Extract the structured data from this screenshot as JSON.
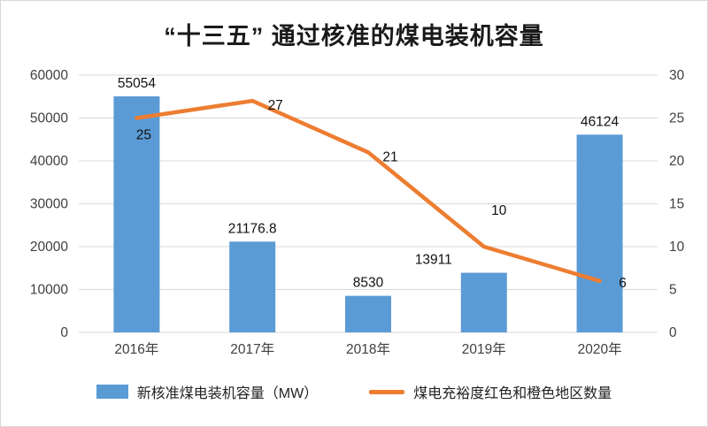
{
  "chart_data": {
    "type": "combo",
    "title": "“十三五” 通过核准的煤电装机容量",
    "categories": [
      "2016年",
      "2017年",
      "2018年",
      "2019年",
      "2020年"
    ],
    "series": [
      {
        "name": "新核准煤电装机容量（MW）",
        "type": "bar",
        "axis": "left",
        "color": "#5B9BD5",
        "values": [
          55054,
          21176.8,
          8530,
          13911,
          46124
        ],
        "labels": [
          "55054",
          "21176.8",
          "8530",
          "13911",
          "46124"
        ]
      },
      {
        "name": "煤电充裕度红色和橙色地区数量",
        "type": "line",
        "axis": "right",
        "color": "#ED7D31",
        "values": [
          25,
          27,
          21,
          10,
          6
        ],
        "labels": [
          "25",
          "27",
          "21",
          "10",
          "6"
        ]
      }
    ],
    "left_axis": {
      "min": 0,
      "max": 60000,
      "step": 10000,
      "ticks": [
        "0",
        "10000",
        "20000",
        "30000",
        "40000",
        "50000",
        "60000"
      ]
    },
    "right_axis": {
      "min": 0,
      "max": 30,
      "step": 5,
      "ticks": [
        "0",
        "5",
        "10",
        "15",
        "20",
        "25",
        "30"
      ]
    },
    "grid": true,
    "legend_position": "bottom"
  }
}
